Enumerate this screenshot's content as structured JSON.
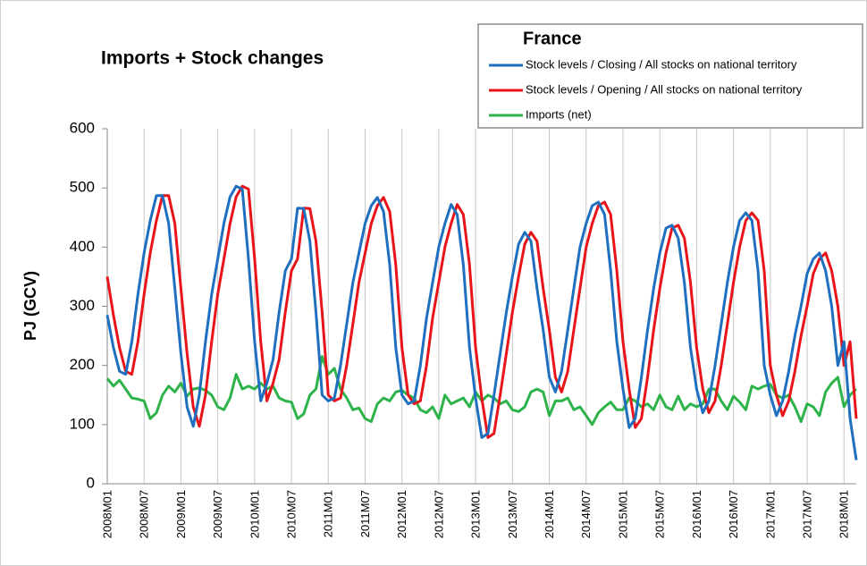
{
  "chart_data": {
    "type": "line",
    "title": "Imports + Stock changes",
    "legend_title": "France",
    "y_label": "PJ (GCV)",
    "categories": [
      "2008M01",
      null,
      null,
      null,
      null,
      null,
      "2008M07",
      null,
      null,
      null,
      null,
      null,
      "2009M01",
      null,
      null,
      null,
      null,
      null,
      "2009M07",
      null,
      null,
      null,
      null,
      null,
      "2010M01",
      null,
      null,
      null,
      null,
      null,
      "2010M07",
      null,
      null,
      null,
      null,
      null,
      "2011M01",
      null,
      null,
      null,
      null,
      null,
      "2011M07",
      null,
      null,
      null,
      null,
      null,
      "2012M01",
      null,
      null,
      null,
      null,
      null,
      "2012M07",
      null,
      null,
      null,
      null,
      null,
      "2013M01",
      null,
      null,
      null,
      null,
      null,
      "2013M07",
      null,
      null,
      null,
      null,
      null,
      "2014M01",
      null,
      null,
      null,
      null,
      null,
      "2014M07",
      null,
      null,
      null,
      null,
      null,
      "2015M01",
      null,
      null,
      null,
      null,
      null,
      "2015M07",
      null,
      null,
      null,
      null,
      null,
      "2016M01",
      null,
      null,
      null,
      null,
      null,
      "2016M07",
      null,
      null,
      null,
      null,
      null,
      "2017M01",
      null,
      null,
      null,
      null,
      null,
      "2017M07",
      null,
      null,
      null,
      null,
      null,
      "2018M01",
      null,
      null
    ],
    "series": [
      {
        "name": "Stock levels / Closing / All stocks on national territory",
        "color": "#1f6fc0",
        "values": [
          285,
          230,
          190,
          185,
          240,
          320,
          390,
          445,
          487,
          487,
          440,
          330,
          220,
          130,
          97,
          150,
          240,
          320,
          380,
          440,
          485,
          503,
          498,
          380,
          240,
          140,
          170,
          210,
          290,
          360,
          380,
          466,
          465,
          410,
          290,
          150,
          140,
          145,
          200,
          270,
          340,
          390,
          440,
          470,
          484,
          460,
          370,
          230,
          150,
          135,
          140,
          200,
          280,
          340,
          400,
          440,
          472,
          455,
          370,
          230,
          145,
          78,
          85,
          150,
          220,
          290,
          350,
          405,
          425,
          410,
          330,
          260,
          180,
          155,
          190,
          260,
          330,
          400,
          440,
          470,
          476,
          455,
          360,
          240,
          160,
          95,
          110,
          180,
          260,
          330,
          390,
          432,
          437,
          415,
          340,
          230,
          160,
          120,
          140,
          200,
          270,
          340,
          400,
          445,
          458,
          445,
          360,
          200,
          150,
          115,
          140,
          190,
          250,
          300,
          355,
          380,
          390,
          360,
          300,
          200,
          240,
          110,
          40
        ]
      },
      {
        "name": "Stock levels / Opening / All stocks on national territory",
        "color": "#e8141a",
        "values": [
          350,
          285,
          230,
          190,
          185,
          240,
          320,
          390,
          445,
          487,
          487,
          440,
          330,
          220,
          130,
          97,
          150,
          240,
          320,
          380,
          440,
          485,
          503,
          498,
          380,
          240,
          140,
          170,
          210,
          290,
          360,
          380,
          466,
          465,
          410,
          290,
          150,
          140,
          145,
          200,
          270,
          340,
          390,
          440,
          470,
          484,
          460,
          370,
          230,
          150,
          135,
          140,
          200,
          280,
          340,
          400,
          440,
          472,
          455,
          370,
          230,
          145,
          78,
          85,
          150,
          220,
          290,
          350,
          405,
          425,
          410,
          330,
          260,
          180,
          155,
          190,
          260,
          330,
          400,
          440,
          470,
          476,
          455,
          360,
          240,
          160,
          95,
          110,
          180,
          260,
          330,
          390,
          432,
          437,
          415,
          340,
          230,
          160,
          120,
          140,
          200,
          270,
          340,
          400,
          445,
          458,
          445,
          360,
          200,
          150,
          115,
          140,
          190,
          250,
          300,
          355,
          380,
          390,
          360,
          300,
          200,
          240,
          110
        ]
      },
      {
        "name": "Imports (net)",
        "color": "#2db34a",
        "values": [
          178,
          165,
          175,
          160,
          145,
          143,
          140,
          110,
          120,
          150,
          165,
          155,
          170,
          148,
          160,
          162,
          158,
          150,
          130,
          125,
          145,
          185,
          160,
          165,
          160,
          170,
          160,
          165,
          145,
          140,
          138,
          110,
          118,
          150,
          160,
          215,
          185,
          195,
          160,
          145,
          125,
          128,
          110,
          105,
          135,
          145,
          140,
          155,
          158,
          150,
          145,
          125,
          120,
          130,
          110,
          150,
          135,
          140,
          145,
          130,
          155,
          140,
          150,
          145,
          135,
          140,
          125,
          122,
          130,
          155,
          160,
          155,
          115,
          140,
          140,
          145,
          125,
          130,
          115,
          100,
          120,
          130,
          138,
          125,
          125,
          145,
          140,
          130,
          135,
          125,
          150,
          130,
          125,
          148,
          125,
          135,
          130,
          135,
          160,
          160,
          140,
          125,
          148,
          138,
          125,
          165,
          160,
          165,
          168,
          150,
          145,
          150,
          130,
          105,
          135,
          130,
          115,
          155,
          170,
          180,
          130,
          150,
          160
        ]
      }
    ],
    "ylim": [
      0,
      600
    ],
    "yticks": [
      0,
      100,
      200,
      300,
      400,
      500,
      600
    ],
    "grid": "x"
  }
}
